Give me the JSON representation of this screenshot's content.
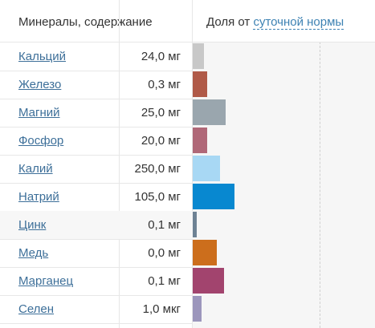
{
  "header": {
    "left": "Минералы, содержание",
    "right_prefix": "Доля от ",
    "right_link": "суточной нормы"
  },
  "rows": [
    {
      "name": "Кальций",
      "value": "24,0 мг",
      "pct": 6,
      "color": "#c8c8c8"
    },
    {
      "name": "Железо",
      "value": "0,3 мг",
      "pct": 8,
      "color": "#b05a48"
    },
    {
      "name": "Магний",
      "value": "25,0 мг",
      "pct": 18,
      "color": "#9aa6ae"
    },
    {
      "name": "Фосфор",
      "value": "20,0 мг",
      "pct": 8,
      "color": "#b06878"
    },
    {
      "name": "Калий",
      "value": "250,0 мг",
      "pct": 15,
      "color": "#a8d8f4"
    },
    {
      "name": "Натрий",
      "value": "105,0 мг",
      "pct": 23,
      "color": "#0888d0"
    },
    {
      "name": "Цинк",
      "value": "0,1 мг",
      "pct": 2,
      "color": "#6e8294"
    },
    {
      "name": "Медь",
      "value": "0,0 мг",
      "pct": 13,
      "color": "#cc6e1c"
    },
    {
      "name": "Марганец",
      "value": "0,1 мг",
      "pct": 17,
      "color": "#a2446e"
    },
    {
      "name": "Селен",
      "value": "1,0 мкг",
      "pct": 5,
      "color": "#9c96bc"
    }
  ]
}
